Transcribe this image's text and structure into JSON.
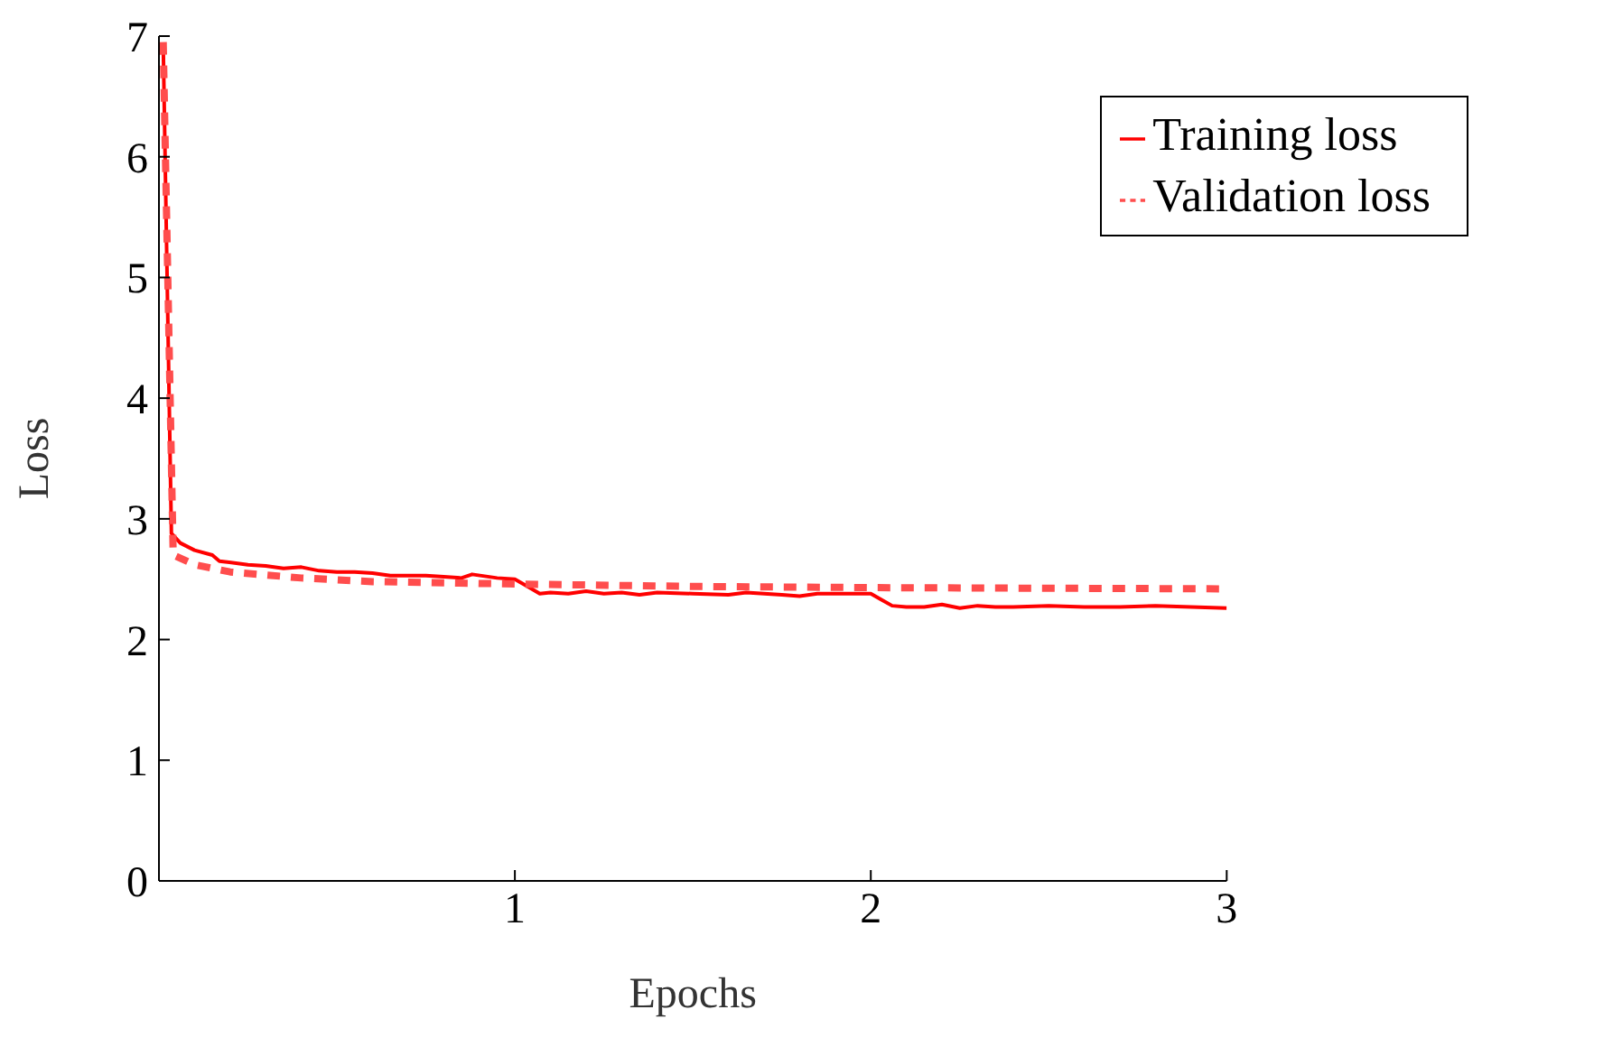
{
  "chart_data": {
    "type": "line",
    "xlabel": "Epochs",
    "ylabel": "Loss",
    "xlim": [
      0,
      3
    ],
    "xticks": [
      1,
      2,
      3
    ],
    "ylim": [
      0,
      7
    ],
    "yticks": [
      0,
      1,
      2,
      3,
      4,
      5,
      6,
      7
    ],
    "legend": "top right",
    "grid": false,
    "series": [
      {
        "name": "Training loss",
        "color": "#ff0000",
        "line_style": "solid",
        "x": [
          0.012,
          0.035,
          0.06,
          0.1,
          0.15,
          0.17,
          0.25,
          0.3,
          0.35,
          0.4,
          0.45,
          0.5,
          0.55,
          0.6,
          0.65,
          0.7,
          0.75,
          0.8,
          0.85,
          0.88,
          0.95,
          1.0,
          1.03,
          1.07,
          1.1,
          1.15,
          1.2,
          1.25,
          1.3,
          1.35,
          1.4,
          1.5,
          1.6,
          1.65,
          1.7,
          1.75,
          1.8,
          1.85,
          1.9,
          1.95,
          2.0,
          2.03,
          2.06,
          2.1,
          2.15,
          2.2,
          2.25,
          2.3,
          2.35,
          2.4,
          2.5,
          2.6,
          2.7,
          2.8,
          2.9,
          3.0
        ],
        "values": [
          6.93,
          2.88,
          2.8,
          2.74,
          2.7,
          2.65,
          2.62,
          2.61,
          2.59,
          2.6,
          2.57,
          2.56,
          2.56,
          2.55,
          2.53,
          2.53,
          2.53,
          2.52,
          2.51,
          2.54,
          2.51,
          2.5,
          2.45,
          2.38,
          2.39,
          2.38,
          2.4,
          2.38,
          2.39,
          2.37,
          2.39,
          2.38,
          2.37,
          2.39,
          2.38,
          2.37,
          2.36,
          2.38,
          2.38,
          2.38,
          2.38,
          2.33,
          2.28,
          2.27,
          2.27,
          2.29,
          2.26,
          2.28,
          2.27,
          2.27,
          2.28,
          2.27,
          2.27,
          2.28,
          2.27,
          2.26
        ]
      },
      {
        "name": "Validation loss",
        "color": "#ff4d4d",
        "line_style": "dashed",
        "x": [
          0.012,
          0.04,
          0.1,
          0.2,
          0.4,
          0.6,
          1.0,
          1.5,
          2.0,
          3.0
        ],
        "values": [
          6.95,
          2.7,
          2.62,
          2.56,
          2.51,
          2.48,
          2.46,
          2.44,
          2.43,
          2.42
        ]
      }
    ]
  }
}
